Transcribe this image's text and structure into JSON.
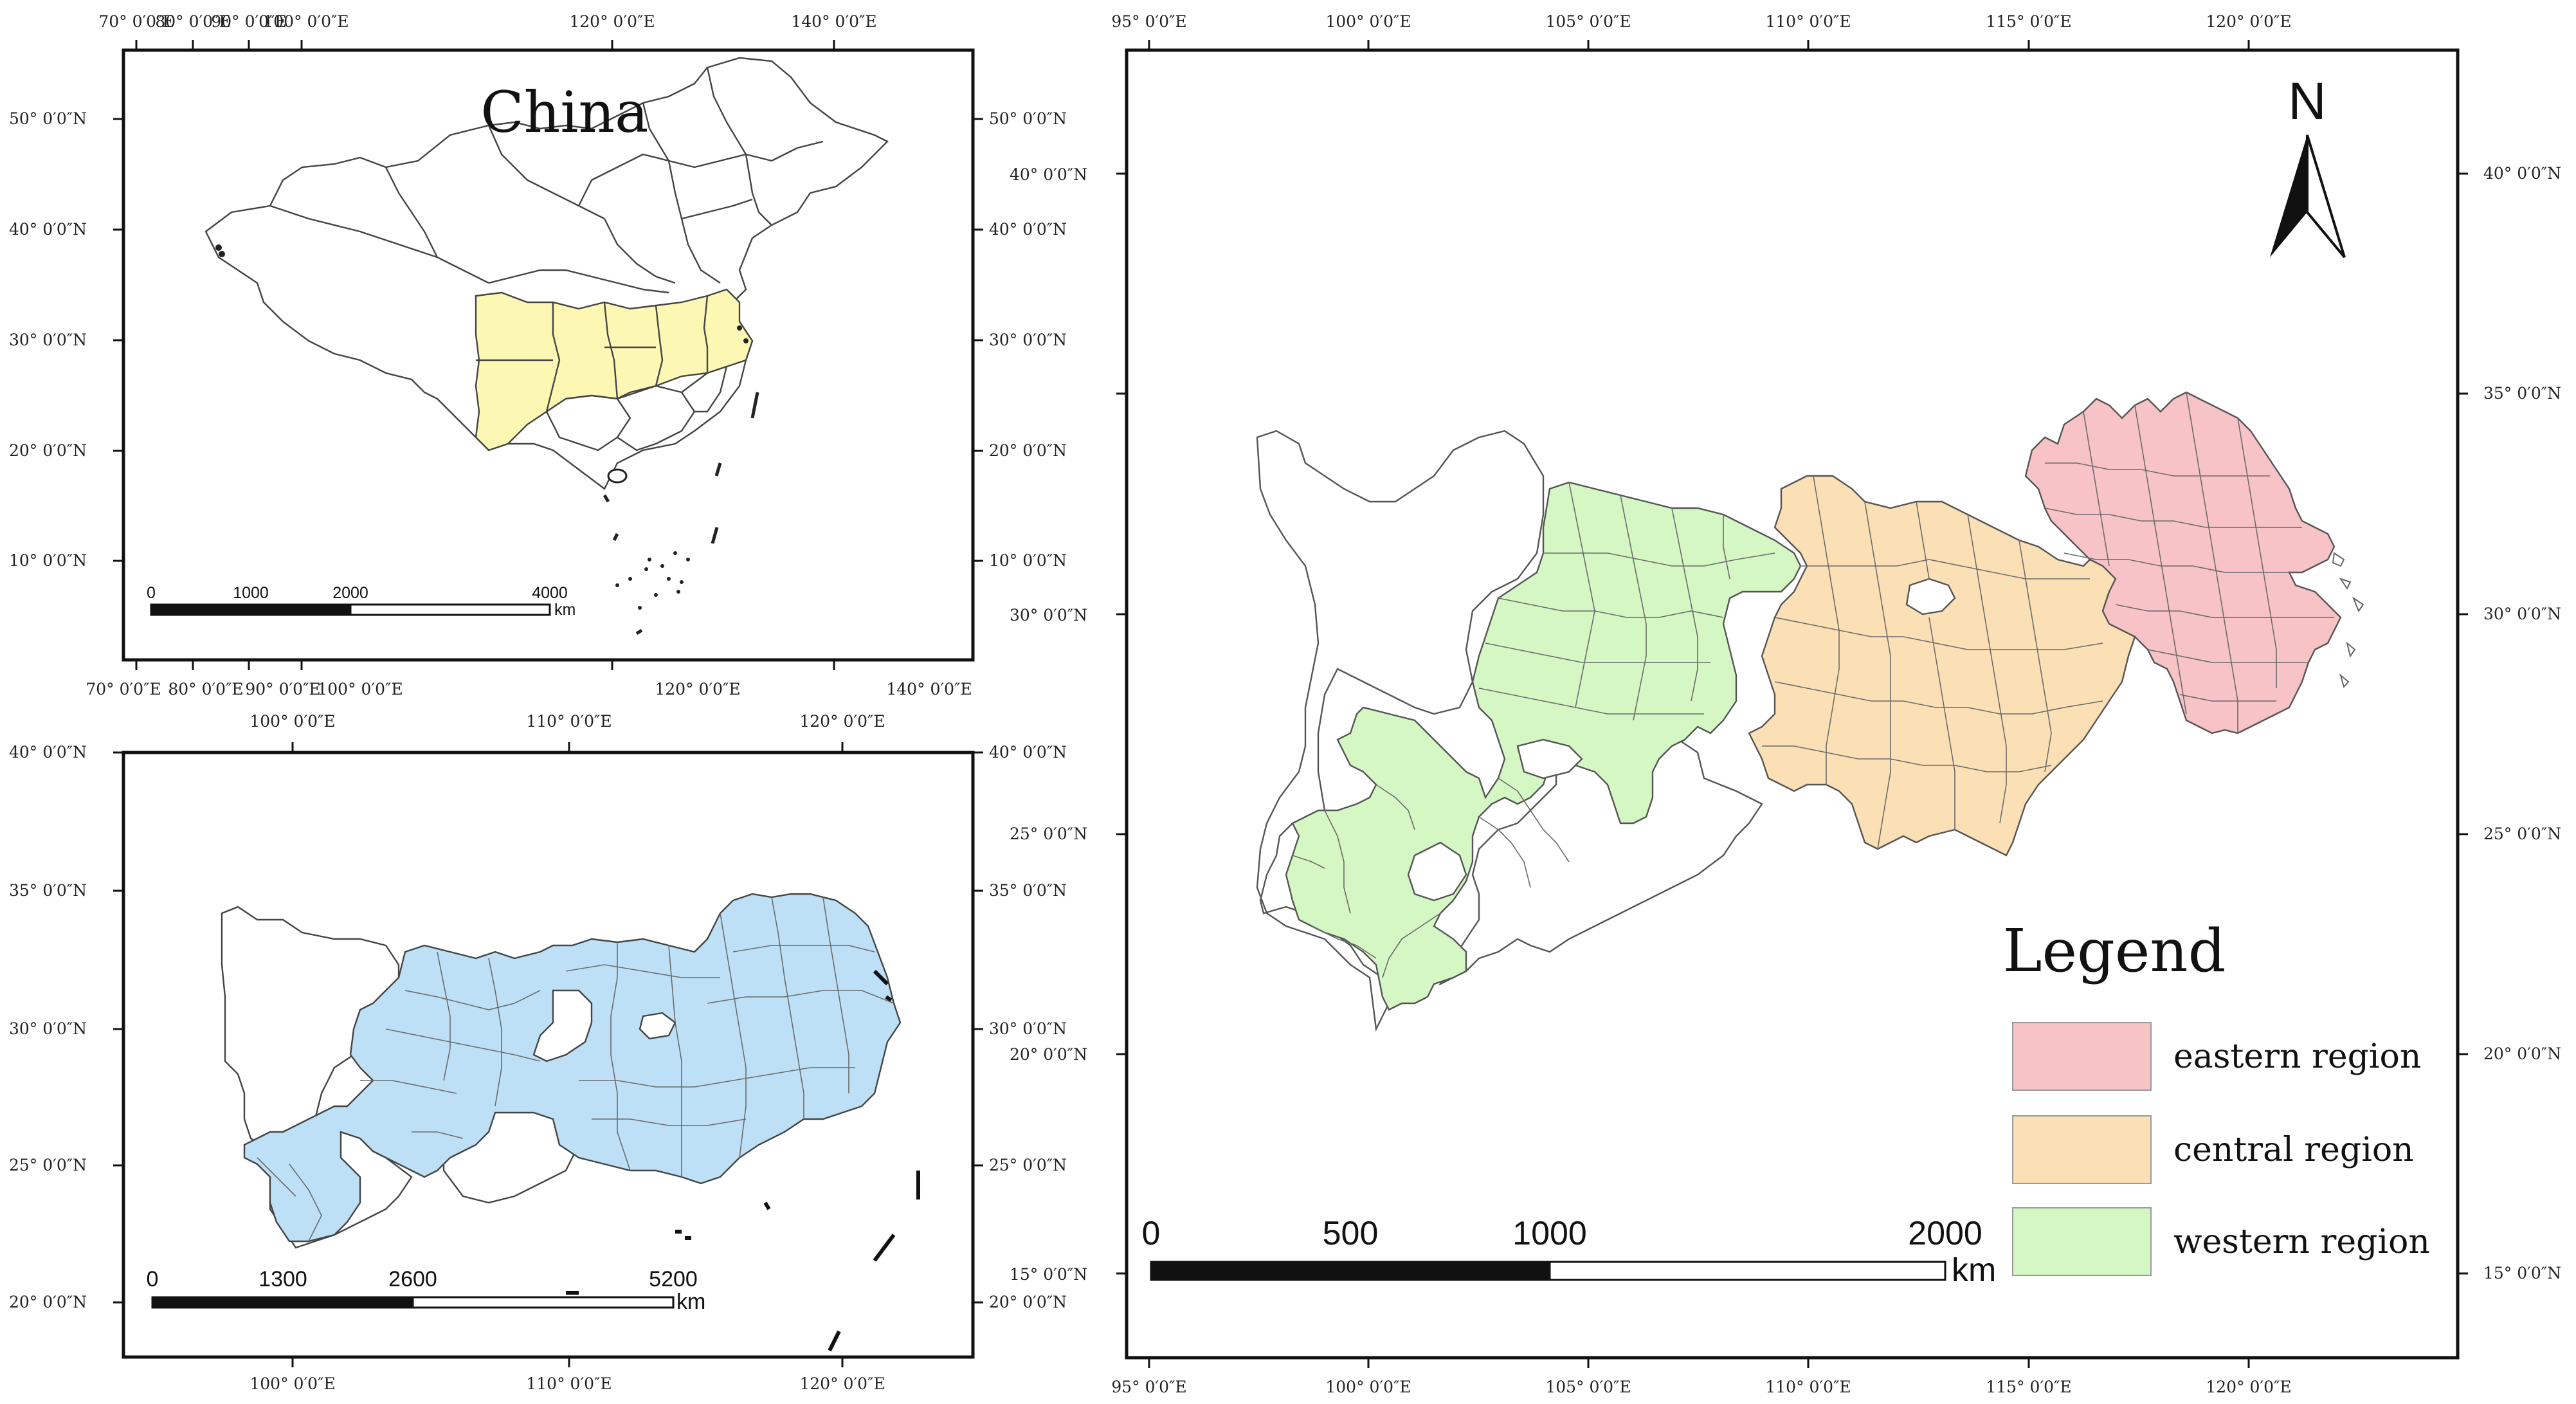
{
  "panels": {
    "china": {
      "title": "China",
      "lon_labels": [
        "70° 0′0″E",
        "80° 0′0″E",
        "90° 0′0″E",
        "100° 0′0″E",
        "120° 0′0″E",
        "140° 0′0″E"
      ],
      "lat_labels": [
        "50° 0′0″N",
        "40° 0′0″N",
        "30° 0′0″N",
        "20° 0′0″N",
        "10° 0′0″N"
      ],
      "right_lat_labels": [
        "50° 0′0″N",
        "40° 0′0″N",
        "40° 0′0″N",
        "30° 0′0″N",
        "20° 0′0″N",
        "10° 0′0″N",
        "30° 0′0″N"
      ],
      "scale": {
        "ticks": [
          "0",
          "1000",
          "2000",
          "4000"
        ],
        "unit": "km"
      },
      "highlight_color": "#fcf8b4"
    },
    "yangtze": {
      "lon_labels": [
        "100° 0′0″E",
        "110° 0′0″E",
        "120° 0′0″E"
      ],
      "lat_labels": [
        "40° 0′0″N",
        "35° 0′0″N",
        "30° 0′0″N",
        "25° 0′0″N",
        "20° 0′0″N"
      ],
      "right_lat_labels": [
        "40° 0′0″N",
        "25° 0′0″N",
        "35° 0′0″N",
        "30° 0′0″N",
        "20° 0′0″N",
        "25° 0′0″N",
        "15° 0′0″N",
        "20° 0′0″N"
      ],
      "scale": {
        "ticks": [
          "0",
          "1300",
          "2600",
          "5200"
        ],
        "unit": "km"
      },
      "highlight_color": "#bde0f7"
    },
    "main": {
      "lon_labels": [
        "95° 0′0″E",
        "100° 0′0″E",
        "105° 0′0″E",
        "110° 0′0″E",
        "115° 0′0″E",
        "120° 0′0″E"
      ],
      "right_lat_labels": [
        "40° 0′0″N",
        "35° 0′0″N",
        "30° 0′0″N",
        "25° 0′0″N",
        "20° 0′0″N",
        "15° 0′0″N"
      ],
      "north_label": "N",
      "scale": {
        "ticks": [
          "0",
          "500",
          "1000",
          "2000"
        ],
        "unit": "km"
      },
      "legend": {
        "title": "Legend",
        "items": [
          {
            "label": "eastern region",
            "color": "#f7c3c6"
          },
          {
            "label": "central region",
            "color": "#fbe0b6"
          },
          {
            "label": "western region",
            "color": "#d4f7c4"
          }
        ]
      }
    }
  }
}
